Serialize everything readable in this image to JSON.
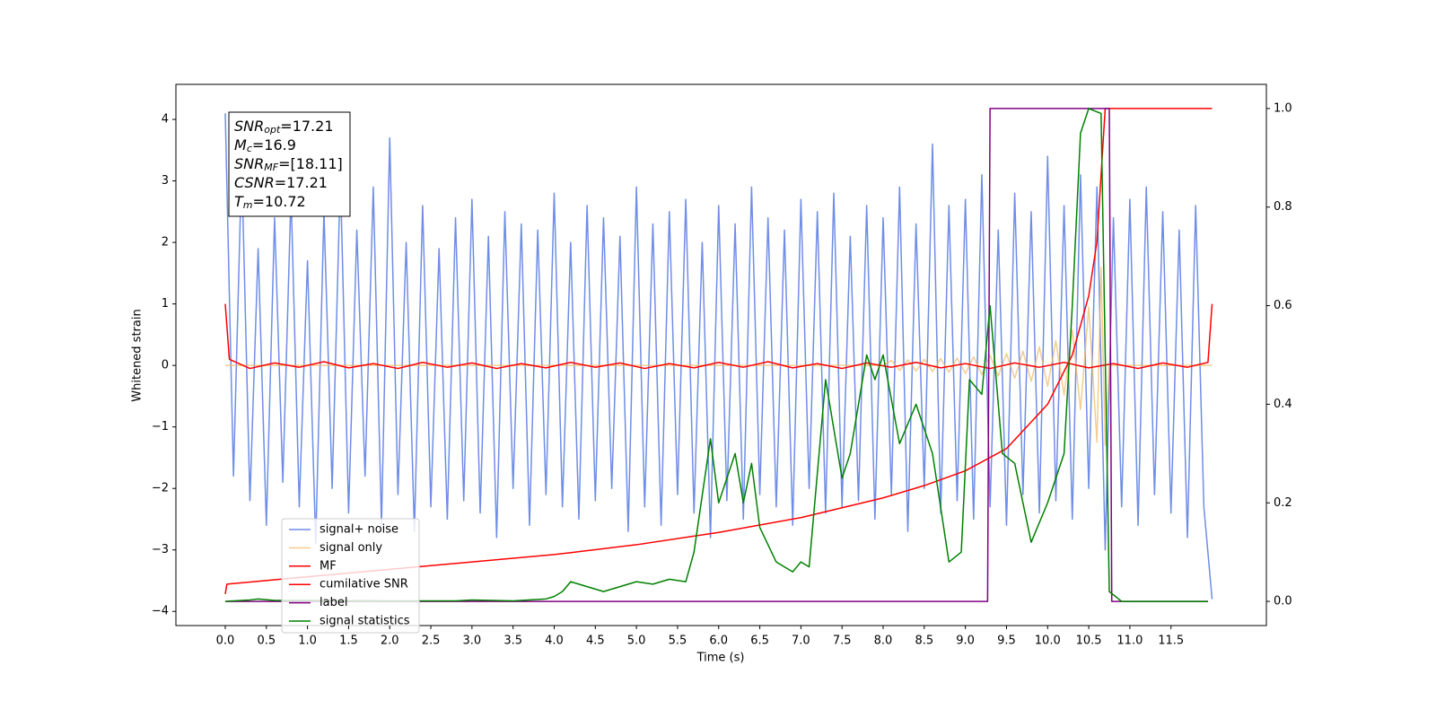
{
  "chart_data": {
    "type": "line",
    "xlabel": "Time (s)",
    "ylabel": "Whitened strain",
    "xlim": [
      -0.6,
      12.66
    ],
    "ylim": [
      -4.23,
      4.57
    ],
    "y2lim": [
      -0.049,
      1.049
    ],
    "xticks": [
      {
        "value": 0,
        "label": "0.0"
      },
      {
        "value": 0.5,
        "label": "0.5"
      },
      {
        "value": 1,
        "label": "1.0"
      },
      {
        "value": 1.5,
        "label": "1.5"
      },
      {
        "value": 2,
        "label": "2.0"
      },
      {
        "value": 2.5,
        "label": "2.5"
      },
      {
        "value": 3,
        "label": "3.0"
      },
      {
        "value": 3.5,
        "label": "3.5"
      },
      {
        "value": 4,
        "label": "4.0"
      },
      {
        "value": 4.5,
        "label": "4.5"
      },
      {
        "value": 5,
        "label": "5.0"
      },
      {
        "value": 5.5,
        "label": "5.5"
      },
      {
        "value": 6,
        "label": "6.0"
      },
      {
        "value": 6.5,
        "label": "6.5"
      },
      {
        "value": 7,
        "label": "7.0"
      },
      {
        "value": 7.5,
        "label": "7.5"
      },
      {
        "value": 8,
        "label": "8.0"
      },
      {
        "value": 8.5,
        "label": "8.5"
      },
      {
        "value": 9,
        "label": "9.0"
      },
      {
        "value": 9.5,
        "label": "9.5"
      },
      {
        "value": 10,
        "label": "10.0"
      },
      {
        "value": 10.5,
        "label": "10.5"
      },
      {
        "value": 11,
        "label": "11.0"
      },
      {
        "value": 11.5,
        "label": "11.5"
      }
    ],
    "yticks": [
      {
        "value": -4,
        "label": "−4"
      },
      {
        "value": -3,
        "label": "−3"
      },
      {
        "value": -2,
        "label": "−2"
      },
      {
        "value": -1,
        "label": "−1"
      },
      0,
      1,
      2,
      3,
      4
    ],
    "y2ticks": [
      {
        "value": 0,
        "label": "0.0"
      },
      {
        "value": 0.2,
        "label": "0.2"
      },
      {
        "value": 0.4,
        "label": "0.4"
      },
      {
        "value": 0.6,
        "label": "0.6"
      },
      {
        "value": 0.8,
        "label": "0.8"
      },
      {
        "value": 1,
        "label": "1.0"
      }
    ],
    "annotation_lines": [
      {
        "main": "SNR",
        "sub": "opt",
        "value": "=17.21"
      },
      {
        "main": "M",
        "sub": "c",
        "value": "=16.9"
      },
      {
        "main": "SNR",
        "sub": "MF",
        "value": "=[18.11]"
      },
      {
        "main": "CSNR",
        "value": "=17.21"
      },
      {
        "main": "T",
        "sub": "m",
        "value": "=10.72"
      }
    ],
    "series": [
      {
        "name": "signal+ noise",
        "color": "#6f8de6",
        "x": [
          0,
          0.1,
          0.2,
          0.3,
          0.4,
          0.5,
          0.6,
          0.7,
          0.8,
          0.9,
          1,
          1.1,
          1.2,
          1.3,
          1.4,
          1.5,
          1.6,
          1.7,
          1.8,
          1.9,
          2,
          2.1,
          2.2,
          2.3,
          2.4,
          2.5,
          2.6,
          2.7,
          2.8,
          2.9,
          3,
          3.1,
          3.2,
          3.3,
          3.4,
          3.5,
          3.6,
          3.7,
          3.8,
          3.9,
          4,
          4.1,
          4.2,
          4.3,
          4.4,
          4.5,
          4.6,
          4.7,
          4.8,
          4.9,
          5,
          5.1,
          5.2,
          5.3,
          5.4,
          5.5,
          5.6,
          5.7,
          5.8,
          5.9,
          6,
          6.1,
          6.2,
          6.3,
          6.4,
          6.5,
          6.6,
          6.7,
          6.8,
          6.9,
          7,
          7.1,
          7.2,
          7.3,
          7.4,
          7.5,
          7.6,
          7.7,
          7.8,
          7.9,
          8,
          8.1,
          8.2,
          8.3,
          8.4,
          8.5,
          8.6,
          8.7,
          8.8,
          8.9,
          9,
          9.1,
          9.2,
          9.3,
          9.4,
          9.5,
          9.6,
          9.7,
          9.8,
          9.9,
          10,
          10.1,
          10.2,
          10.3,
          10.4,
          10.5,
          10.6,
          10.7,
          10.8,
          10.9,
          11,
          11.1,
          11.2,
          11.3,
          11.4,
          11.5,
          11.6,
          11.7,
          11.8,
          11.9,
          12
        ],
        "values": [
          4.1,
          -1.8,
          3.3,
          -2.2,
          1.9,
          -2.6,
          2.4,
          -1.9,
          2.8,
          -2.3,
          1.7,
          -2.9,
          2.5,
          -2.0,
          3.1,
          -2.4,
          2.2,
          -1.8,
          2.9,
          -2.6,
          3.7,
          -2.1,
          2.0,
          -2.7,
          2.6,
          -2.3,
          1.9,
          -2.5,
          2.4,
          -2.2,
          2.7,
          -2.4,
          2.1,
          -2.8,
          2.5,
          -2.0,
          2.3,
          -2.6,
          2.2,
          -2.1,
          2.8,
          -2.3,
          2.0,
          -2.5,
          2.6,
          -2.2,
          2.4,
          -2.0,
          2.1,
          -2.7,
          2.9,
          -2.3,
          2.3,
          -2.6,
          2.5,
          -2.1,
          2.7,
          -2.4,
          2.0,
          -2.8,
          2.6,
          -2.2,
          2.3,
          -2.5,
          2.9,
          -2.1,
          2.4,
          -2.3,
          2.2,
          -2.6,
          2.7,
          -2.0,
          2.5,
          -2.4,
          2.8,
          -2.3,
          2.1,
          -2.2,
          2.6,
          -2.5,
          2.4,
          -2.1,
          2.9,
          -2.7,
          2.3,
          -2.0,
          3.6,
          -2.4,
          2.6,
          -2.2,
          2.7,
          -2.5,
          3.1,
          -2.3,
          2.2,
          -2.6,
          2.8,
          -2.1,
          2.5,
          -2.4,
          3.4,
          -2.2,
          2.6,
          -2.5,
          3.1,
          -2.0,
          2.9,
          -3.0,
          2.4,
          -2.3,
          2.7,
          -2.6,
          2.9,
          -2.1,
          2.5,
          -2.4,
          2.2,
          -2.8,
          2.6,
          -2.3,
          -3.8
        ]
      },
      {
        "name": "signal only",
        "color": "#f0b860",
        "x": [
          0,
          8.0,
          8.1,
          8.2,
          8.3,
          8.4,
          8.5,
          8.6,
          8.7,
          8.8,
          8.9,
          9.0,
          9.1,
          9.2,
          9.3,
          9.4,
          9.5,
          9.6,
          9.7,
          9.8,
          9.9,
          10.0,
          10.1,
          10.2,
          10.3,
          10.4,
          10.5,
          10.6,
          10.65,
          10.7,
          10.75,
          12.0
        ],
        "values": [
          0,
          0,
          0.08,
          -0.08,
          0.09,
          -0.09,
          0.1,
          -0.1,
          0.11,
          -0.11,
          0.12,
          -0.13,
          0.14,
          -0.15,
          0.16,
          -0.17,
          0.19,
          -0.21,
          0.23,
          -0.26,
          0.3,
          -0.34,
          0.4,
          -0.48,
          0.58,
          -0.72,
          0.95,
          -1.25,
          1.6,
          -1.3,
          0,
          0
        ]
      },
      {
        "name": "MF",
        "color": "#ff0000",
        "x": [
          0,
          0.05,
          0.3,
          0.6,
          0.9,
          1.2,
          1.5,
          1.8,
          2.1,
          2.4,
          2.7,
          3.0,
          3.3,
          3.6,
          3.9,
          4.2,
          4.5,
          4.8,
          5.1,
          5.4,
          5.7,
          6.0,
          6.3,
          6.6,
          6.9,
          7.2,
          7.5,
          7.8,
          8.1,
          8.4,
          8.7,
          9.0,
          9.3,
          9.6,
          9.9,
          10.2,
          10.5,
          10.8,
          11.1,
          11.4,
          11.7,
          11.95,
          12.0
        ],
        "values": [
          1.0,
          0.1,
          -0.05,
          0.04,
          -0.03,
          0.06,
          -0.04,
          0.03,
          -0.05,
          0.05,
          -0.03,
          0.04,
          -0.05,
          0.03,
          -0.04,
          0.05,
          -0.03,
          0.04,
          -0.05,
          0.03,
          -0.04,
          0.05,
          -0.03,
          0.06,
          -0.04,
          0.03,
          -0.05,
          0.04,
          -0.03,
          0.05,
          -0.04,
          0.03,
          -0.05,
          0.04,
          -0.03,
          0.05,
          -0.04,
          0.03,
          -0.05,
          0.04,
          -0.03,
          0.05,
          1.0
        ]
      },
      {
        "name": "cumilative SNR",
        "color": "#ff0000",
        "axis": "y2",
        "x": [
          0,
          0.02,
          1,
          2,
          3,
          4,
          5,
          6,
          7,
          8,
          8.5,
          9,
          9.5,
          10,
          10.3,
          10.5,
          10.6,
          10.7,
          12.0
        ],
        "values": [
          0.015,
          0.035,
          0.05,
          0.065,
          0.08,
          0.095,
          0.115,
          0.14,
          0.17,
          0.21,
          0.235,
          0.265,
          0.31,
          0.4,
          0.5,
          0.62,
          0.73,
          1.0,
          1.0
        ]
      },
      {
        "name": "label",
        "color": "#800080",
        "axis": "y2",
        "x": [
          0,
          9.27,
          9.3,
          10.75,
          10.78,
          11.95
        ],
        "values": [
          0,
          0,
          1,
          1,
          0,
          0
        ]
      },
      {
        "name": "signal statistics",
        "color": "#008000",
        "axis": "y2",
        "x": [
          0,
          0.3,
          0.4,
          0.6,
          1,
          2,
          2.8,
          3,
          3.5,
          3.9,
          4,
          4.1,
          4.2,
          4.4,
          4.5,
          4.6,
          4.8,
          5,
          5.2,
          5.4,
          5.6,
          5.7,
          5.9,
          6.0,
          6.2,
          6.3,
          6.4,
          6.5,
          6.7,
          6.9,
          7.0,
          7.1,
          7.3,
          7.5,
          7.6,
          7.8,
          7.9,
          8.0,
          8.2,
          8.4,
          8.6,
          8.8,
          8.95,
          9.05,
          9.2,
          9.3,
          9.45,
          9.6,
          9.8,
          10.0,
          10.2,
          10.3,
          10.4,
          10.5,
          10.65,
          10.75,
          10.9,
          11.95
        ],
        "values": [
          0,
          0.003,
          0.005,
          0.002,
          0.002,
          0.001,
          0.001,
          0.003,
          0.001,
          0.005,
          0.01,
          0.02,
          0.04,
          0.03,
          0.025,
          0.02,
          0.03,
          0.04,
          0.035,
          0.045,
          0.04,
          0.1,
          0.33,
          0.2,
          0.3,
          0.2,
          0.28,
          0.15,
          0.08,
          0.06,
          0.08,
          0.07,
          0.45,
          0.25,
          0.3,
          0.5,
          0.45,
          0.5,
          0.32,
          0.4,
          0.3,
          0.08,
          0.1,
          0.45,
          0.42,
          0.6,
          0.3,
          0.28,
          0.12,
          0.2,
          0.3,
          0.6,
          0.95,
          1.0,
          0.99,
          0.02,
          0.0,
          0.0
        ]
      }
    ]
  }
}
